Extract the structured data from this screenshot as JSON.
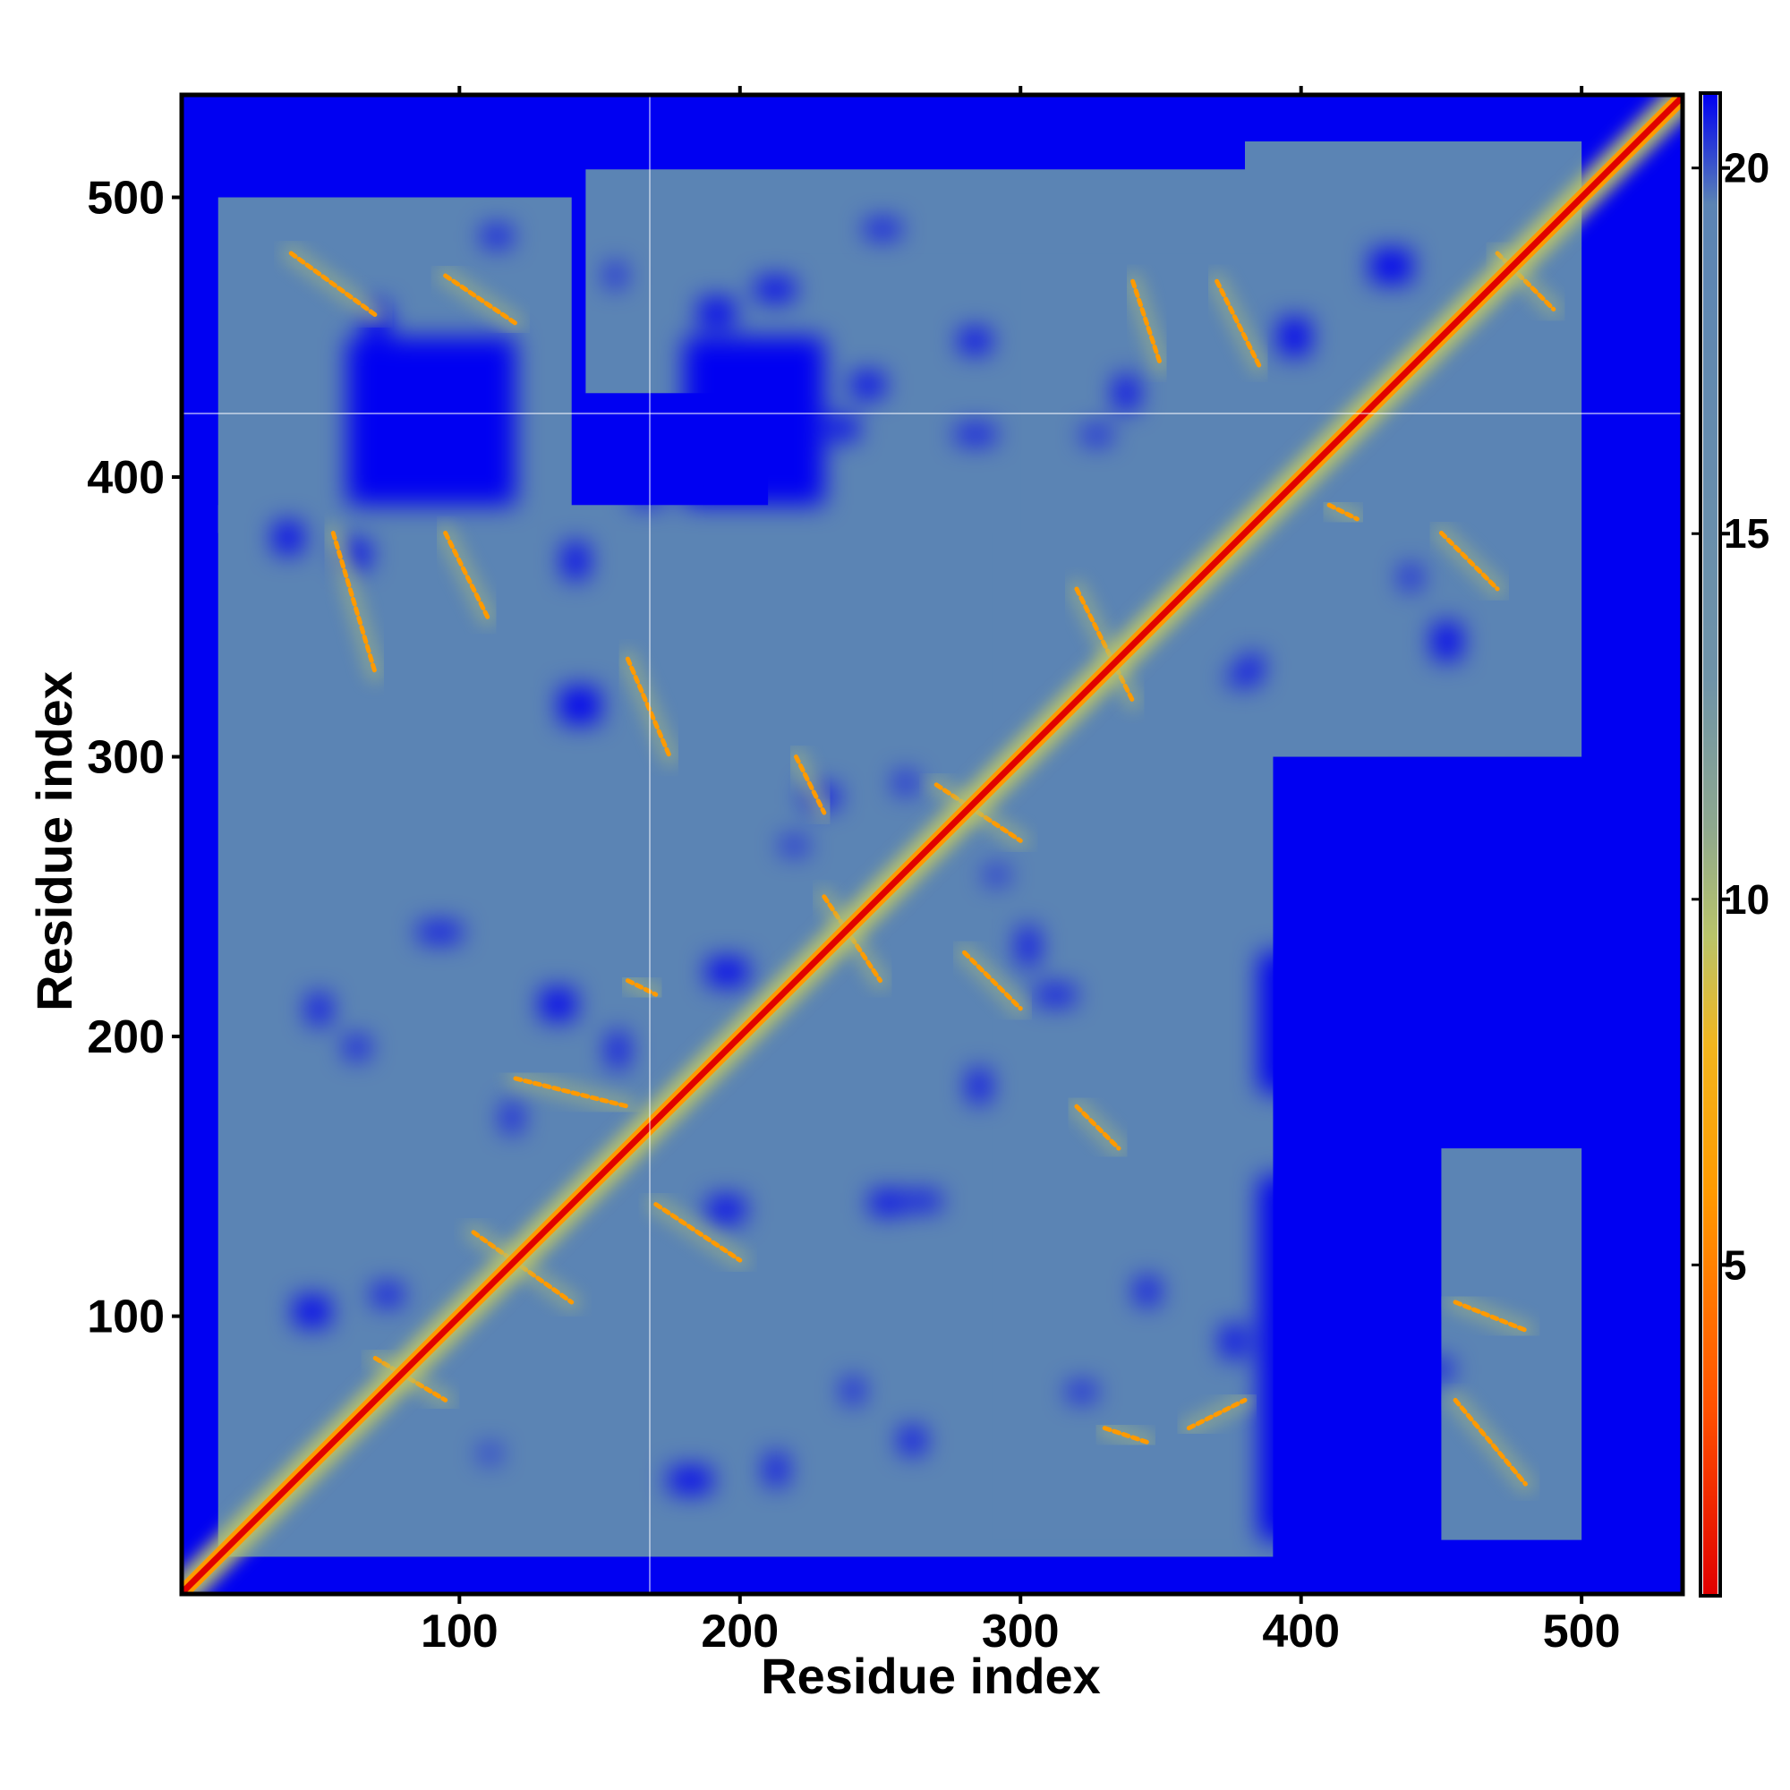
{
  "chart_data": {
    "type": "heatmap",
    "title": "",
    "xlabel": "Residue index",
    "ylabel": "Residue index",
    "xlim": [
      1,
      536
    ],
    "ylim": [
      1,
      536
    ],
    "xticks": [
      100,
      200,
      300,
      400,
      500
    ],
    "yticks": [
      100,
      200,
      300,
      400,
      500
    ],
    "xtick_labels": [
      "100",
      "200",
      "300",
      "400",
      "500"
    ],
    "ytick_labels": [
      "100",
      "200",
      "300",
      "400",
      "500"
    ],
    "colorbar": {
      "range": [
        0.5,
        21
      ],
      "ticks": [
        5,
        10,
        15,
        20
      ],
      "tick_labels": [
        "5",
        "10",
        "15",
        "20"
      ],
      "stops": [
        {
          "value": 0.5,
          "color": "#e00000"
        },
        {
          "value": 3,
          "color": "#ff5000"
        },
        {
          "value": 6,
          "color": "#ff9a00"
        },
        {
          "value": 8,
          "color": "#f2b51e"
        },
        {
          "value": 9.5,
          "color": "#b9c46a"
        },
        {
          "value": 11,
          "color": "#8ea88f"
        },
        {
          "value": 13,
          "color": "#6f93a8"
        },
        {
          "value": 19.5,
          "color": "#5b84b4"
        },
        {
          "value": 21,
          "color": "#0000f2"
        }
      ]
    },
    "background_color": "#0000f2",
    "matrix_note_values": {
      "diagonal_distance": 1,
      "far_distance": 21
    },
    "contact_segments": [
      {
        "x": [
          40,
          70
        ],
        "y": [
          480,
          458
        ]
      },
      {
        "x": [
          95,
          120
        ],
        "y": [
          472,
          455
        ]
      },
      {
        "x": [
          340,
          350
        ],
        "y": [
          470,
          440
        ]
      },
      {
        "x": [
          370,
          385
        ],
        "y": [
          470,
          440
        ]
      },
      {
        "x": [
          55,
          70
        ],
        "y": [
          380,
          330
        ]
      },
      {
        "x": [
          95,
          110
        ],
        "y": [
          380,
          350
        ]
      },
      {
        "x": [
          160,
          175
        ],
        "y": [
          335,
          300
        ]
      },
      {
        "x": [
          220,
          230
        ],
        "y": [
          300,
          280
        ]
      },
      {
        "x": [
          270,
          300
        ],
        "y": [
          290,
          270
        ]
      },
      {
        "x": [
          320,
          340
        ],
        "y": [
          360,
          320
        ]
      },
      {
        "x": [
          450,
          470
        ],
        "y": [
          380,
          360
        ]
      },
      {
        "x": [
          230,
          250
        ],
        "y": [
          250,
          220
        ]
      },
      {
        "x": [
          280,
          300
        ],
        "y": [
          230,
          210
        ]
      },
      {
        "x": [
          120,
          160
        ],
        "y": [
          185,
          175
        ]
      },
      {
        "x": [
          170,
          200
        ],
        "y": [
          140,
          120
        ]
      },
      {
        "x": [
          320,
          335
        ],
        "y": [
          175,
          160
        ]
      },
      {
        "x": [
          105,
          140
        ],
        "y": [
          130,
          105
        ]
      },
      {
        "x": [
          70,
          95
        ],
        "y": [
          85,
          70
        ]
      },
      {
        "x": [
          330,
          345
        ],
        "y": [
          60,
          55
        ]
      },
      {
        "x": [
          360,
          380
        ],
        "y": [
          60,
          70
        ]
      },
      {
        "x": [
          455,
          480
        ],
        "y": [
          105,
          95
        ]
      },
      {
        "x": [
          455,
          480
        ],
        "y": [
          70,
          40
        ]
      },
      {
        "x": [
          160,
          170
        ],
        "y": [
          220,
          215
        ]
      },
      {
        "x": [
          410,
          420
        ],
        "y": [
          390,
          385
        ]
      },
      {
        "x": [
          470,
          490
        ],
        "y": [
          480,
          460
        ]
      }
    ],
    "blank_regions": [
      {
        "x": [
          385,
          440
        ],
        "y": [
          20,
          150
        ]
      },
      {
        "x": [
          385,
          450
        ],
        "y": [
          180,
          230
        ]
      },
      {
        "x": [
          60,
          120
        ],
        "y": [
          390,
          450
        ]
      },
      {
        "x": [
          180,
          230
        ],
        "y": [
          390,
          450
        ]
      },
      {
        "x": [
          430,
          470
        ],
        "y": [
          240,
          290
        ]
      }
    ]
  }
}
